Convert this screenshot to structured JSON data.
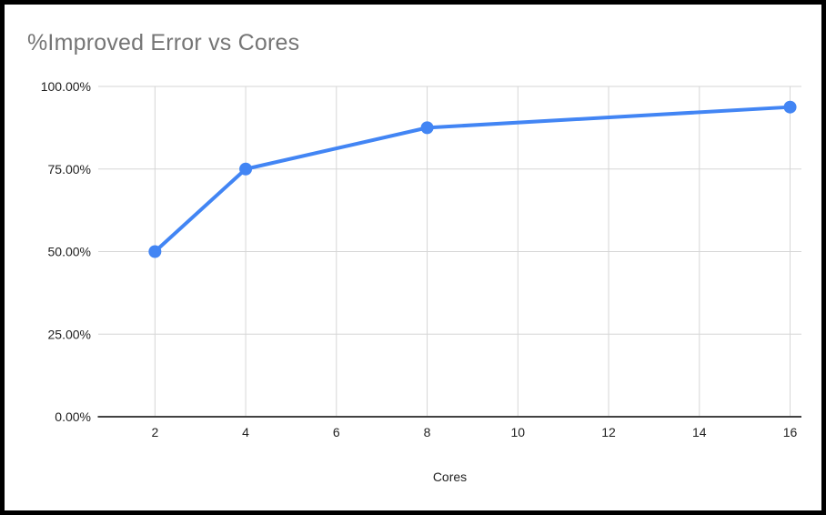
{
  "chart_data": {
    "type": "line",
    "title": "%Improved Error vs Cores",
    "xlabel": "Cores",
    "ylabel": "",
    "x": [
      2,
      4,
      8,
      16
    ],
    "values": [
      50,
      75,
      87.5,
      93.75
    ],
    "series": [
      {
        "name": "%Improved Error",
        "x": [
          2,
          4,
          8,
          16
        ],
        "values": [
          50,
          75,
          87.5,
          93.75
        ]
      }
    ],
    "x_ticks": [
      2,
      4,
      6,
      8,
      10,
      12,
      14,
      16
    ],
    "y_ticks": [
      0,
      25,
      50,
      75,
      100
    ],
    "y_tick_labels": [
      "0.00%",
      "25.00%",
      "50.00%",
      "75.00%",
      "100.00%"
    ],
    "xlim": [
      0.75,
      16.25
    ],
    "ylim": [
      0,
      100
    ],
    "grid": true,
    "legend_position": "none"
  },
  "colors": {
    "accent": "#4285f4",
    "title_color": "#757575",
    "grid_color": "#d6d6d6",
    "axis_line_color": "#424242",
    "tick_label_color": "#1f1f1f",
    "background": "#ffffff",
    "border_color": "#000000"
  }
}
